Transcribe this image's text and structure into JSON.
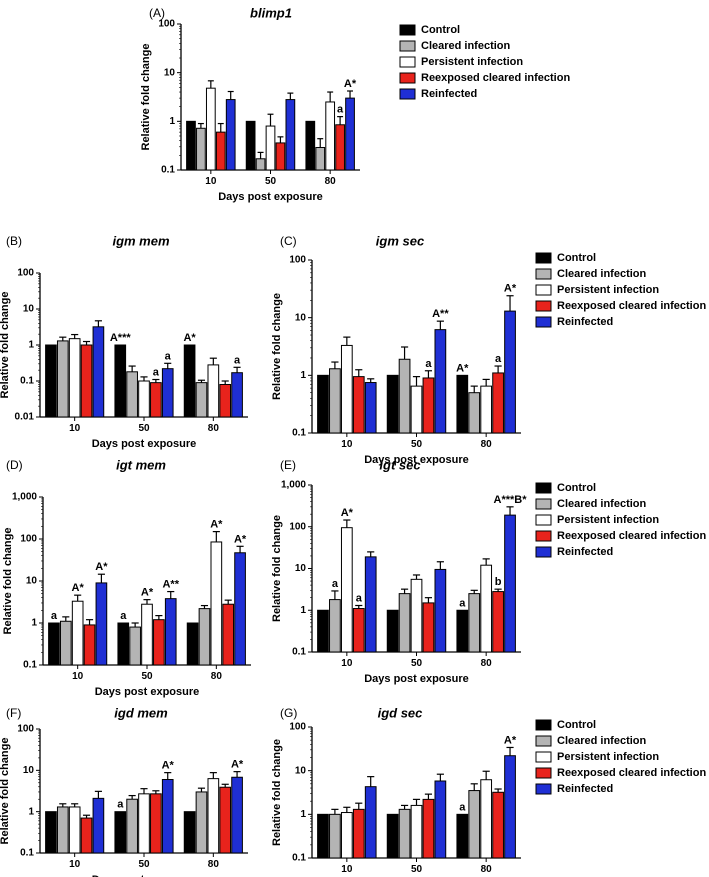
{
  "legend_labels": [
    "Control",
    "Cleared infection",
    "Persistent infection",
    "Reexposed cleared infection",
    "Reinfected"
  ],
  "series_colors": [
    "#000000",
    "#b4b4b4",
    "#ffffff",
    "#e8231c",
    "#1f2fd4"
  ],
  "chart_data": [
    {
      "panel": "(A)",
      "title": "blimp1",
      "type": "bar",
      "xlabel": "Days post exposure",
      "ylabel": "Relative fold change",
      "yscale": "log",
      "ylim": [
        0.1,
        100
      ],
      "yticks": [
        "0.1",
        "1",
        "10",
        "100"
      ],
      "categories": [
        "10",
        "50",
        "80"
      ],
      "series": [
        {
          "name": "Control",
          "values": [
            1,
            1,
            1
          ],
          "errors": [
            0,
            0,
            0
          ]
        },
        {
          "name": "Cleared infection",
          "values": [
            0.72,
            0.17,
            0.29
          ],
          "errors": [
            0.18,
            0.06,
            0.15
          ]
        },
        {
          "name": "Persistent infection",
          "values": [
            4.8,
            0.8,
            2.5
          ],
          "errors": [
            2.0,
            0.6,
            1.5
          ]
        },
        {
          "name": "Reexposed cleared infection",
          "values": [
            0.6,
            0.36,
            0.85
          ],
          "errors": [
            0.3,
            0.12,
            0.4
          ]
        },
        {
          "name": "Reinfected",
          "values": [
            2.8,
            2.8,
            3.0
          ],
          "errors": [
            1.3,
            1.0,
            1.2
          ]
        }
      ],
      "annotations": [
        {
          "category": 2,
          "series": 3,
          "text": "a"
        },
        {
          "category": 2,
          "series": 4,
          "text": "A*"
        }
      ]
    },
    {
      "panel": "(B)",
      "title": "igm mem",
      "type": "bar",
      "xlabel": "Days post exposure",
      "ylabel": "Relative fold change",
      "yscale": "log",
      "ylim": [
        0.01,
        100
      ],
      "yticks": [
        "0.01",
        "0.1",
        "1",
        "10",
        "100"
      ],
      "categories": [
        "10",
        "50",
        "80"
      ],
      "series": [
        {
          "name": "Control",
          "values": [
            1,
            1,
            1
          ],
          "errors": [
            0,
            0,
            0
          ]
        },
        {
          "name": "Cleared infection",
          "values": [
            1.3,
            0.18,
            0.09
          ],
          "errors": [
            0.35,
            0.08,
            0.015
          ]
        },
        {
          "name": "Persistent infection",
          "values": [
            1.5,
            0.1,
            0.28
          ],
          "errors": [
            0.45,
            0.03,
            0.15
          ]
        },
        {
          "name": "Reexposed cleared infection",
          "values": [
            1.0,
            0.09,
            0.08
          ],
          "errors": [
            0.25,
            0.02,
            0.02
          ]
        },
        {
          "name": "Reinfected",
          "values": [
            3.2,
            0.22,
            0.17
          ],
          "errors": [
            1.5,
            0.09,
            0.07
          ]
        }
      ],
      "annotations": [
        {
          "category": 1,
          "series": 0,
          "text": "A***"
        },
        {
          "category": 1,
          "series": 3,
          "text": "a"
        },
        {
          "category": 1,
          "series": 4,
          "text": "a"
        },
        {
          "category": 2,
          "series": 0,
          "text": "A*"
        },
        {
          "category": 2,
          "series": 4,
          "text": "a"
        }
      ]
    },
    {
      "panel": "(C)",
      "title": "igm sec",
      "type": "bar",
      "xlabel": "Days post exposure",
      "ylabel": "Relative fold change",
      "yscale": "log",
      "ylim": [
        0.1,
        100
      ],
      "yticks": [
        "0.1",
        "1",
        "10",
        "100"
      ],
      "categories": [
        "10",
        "50",
        "80"
      ],
      "series": [
        {
          "name": "Control",
          "values": [
            1,
            1,
            1
          ],
          "errors": [
            0,
            0,
            0
          ]
        },
        {
          "name": "Cleared infection",
          "values": [
            1.3,
            1.9,
            0.5
          ],
          "errors": [
            0.4,
            1.2,
            0.15
          ]
        },
        {
          "name": "Persistent infection",
          "values": [
            3.3,
            0.65,
            0.65
          ],
          "errors": [
            1.3,
            0.3,
            0.2
          ]
        },
        {
          "name": "Reexposed cleared infection",
          "values": [
            0.95,
            0.9,
            1.1
          ],
          "errors": [
            0.3,
            0.3,
            0.35
          ]
        },
        {
          "name": "Reinfected",
          "values": [
            0.75,
            6.2,
            13
          ],
          "errors": [
            0.12,
            2.5,
            11
          ]
        }
      ],
      "annotations": [
        {
          "category": 1,
          "series": 3,
          "text": "a"
        },
        {
          "category": 1,
          "series": 4,
          "text": "A**"
        },
        {
          "category": 2,
          "series": 0,
          "text": "A*"
        },
        {
          "category": 2,
          "series": 3,
          "text": "a"
        },
        {
          "category": 2,
          "series": 4,
          "text": "A*"
        }
      ]
    },
    {
      "panel": "(D)",
      "title": "igt mem",
      "type": "bar",
      "xlabel": "Days post exposure",
      "ylabel": "Relative fold change",
      "yscale": "log",
      "ylim": [
        0.1,
        1000
      ],
      "yticks": [
        "0.1",
        "1",
        "10",
        "100",
        "1,000"
      ],
      "categories": [
        "10",
        "50",
        "80"
      ],
      "series": [
        {
          "name": "Control",
          "values": [
            1,
            1,
            1
          ],
          "errors": [
            0,
            0,
            0
          ]
        },
        {
          "name": "Cleared infection",
          "values": [
            1.1,
            0.8,
            2.2
          ],
          "errors": [
            0.3,
            0.2,
            0.4
          ]
        },
        {
          "name": "Persistent infection",
          "values": [
            3.3,
            2.8,
            85
          ],
          "errors": [
            1.3,
            0.8,
            65
          ]
        },
        {
          "name": "Reexposed cleared infection",
          "values": [
            0.9,
            1.2,
            2.8
          ],
          "errors": [
            0.3,
            0.3,
            0.7
          ]
        },
        {
          "name": "Reinfected",
          "values": [
            9,
            3.8,
            47
          ],
          "errors": [
            5.5,
            1.8,
            20
          ]
        }
      ],
      "annotations": [
        {
          "category": 0,
          "series": 0,
          "text": "a"
        },
        {
          "category": 0,
          "series": 2,
          "text": "A*"
        },
        {
          "category": 0,
          "series": 4,
          "text": "A*"
        },
        {
          "category": 1,
          "series": 0,
          "text": "a"
        },
        {
          "category": 1,
          "series": 2,
          "text": "A*"
        },
        {
          "category": 1,
          "series": 4,
          "text": "A**"
        },
        {
          "category": 2,
          "series": 2,
          "text": "A*"
        },
        {
          "category": 2,
          "series": 4,
          "text": "A*"
        }
      ]
    },
    {
      "panel": "(E)",
      "title": "igt sec",
      "type": "bar",
      "xlabel": "Days post exposure",
      "ylabel": "Relative fold change",
      "yscale": "log",
      "ylim": [
        0.1,
        1000
      ],
      "yticks": [
        "0.1",
        "1",
        "10",
        "100",
        "1,000"
      ],
      "categories": [
        "10",
        "50",
        "80"
      ],
      "series": [
        {
          "name": "Control",
          "values": [
            1,
            1,
            1
          ],
          "errors": [
            0,
            0,
            0
          ]
        },
        {
          "name": "Cleared infection",
          "values": [
            1.8,
            2.5,
            2.5
          ],
          "errors": [
            1.1,
            0.7,
            0.5
          ]
        },
        {
          "name": "Persistent infection",
          "values": [
            95,
            5.5,
            12
          ],
          "errors": [
            50,
            1.5,
            5
          ]
        },
        {
          "name": "Reexposed cleared infection",
          "values": [
            1.1,
            1.5,
            2.8
          ],
          "errors": [
            0.2,
            0.5,
            0.4
          ]
        },
        {
          "name": "Reinfected",
          "values": [
            19,
            9.5,
            190
          ],
          "errors": [
            6,
            5,
            110
          ]
        }
      ],
      "annotations": [
        {
          "category": 0,
          "series": 1,
          "text": "a"
        },
        {
          "category": 0,
          "series": 2,
          "text": "A*"
        },
        {
          "category": 0,
          "series": 3,
          "text": "a"
        },
        {
          "category": 2,
          "series": 0,
          "text": "a"
        },
        {
          "category": 2,
          "series": 3,
          "text": "b"
        },
        {
          "category": 2,
          "series": 4,
          "text": "A***B*"
        }
      ]
    },
    {
      "panel": "(F)",
      "title": "igd mem",
      "type": "bar",
      "xlabel": "Days post exposure",
      "ylabel": "Relative fold change",
      "yscale": "log",
      "ylim": [
        0.1,
        100
      ],
      "yticks": [
        "0.1",
        "1",
        "10",
        "100"
      ],
      "categories": [
        "10",
        "50",
        "80"
      ],
      "series": [
        {
          "name": "Control",
          "values": [
            1,
            1,
            1
          ],
          "errors": [
            0,
            0,
            0
          ]
        },
        {
          "name": "Cleared infection",
          "values": [
            1.3,
            2.0,
            3.0
          ],
          "errors": [
            0.25,
            0.45,
            0.7
          ]
        },
        {
          "name": "Persistent infection",
          "values": [
            1.3,
            2.7,
            6.3
          ],
          "errors": [
            0.25,
            0.9,
            2.5
          ]
        },
        {
          "name": "Reexposed cleared infection",
          "values": [
            0.7,
            2.7,
            3.9
          ],
          "errors": [
            0.12,
            0.5,
            0.7
          ]
        },
        {
          "name": "Reinfected",
          "values": [
            2.1,
            6.0,
            6.8
          ],
          "errors": [
            1.0,
            2.8,
            2.5
          ]
        }
      ],
      "annotations": [
        {
          "category": 1,
          "series": 0,
          "text": "a"
        },
        {
          "category": 1,
          "series": 4,
          "text": "A*"
        },
        {
          "category": 2,
          "series": 4,
          "text": "A*"
        }
      ]
    },
    {
      "panel": "(G)",
      "title": "igd sec",
      "type": "bar",
      "xlabel": "Days post exposure",
      "ylabel": "Relative fold change",
      "yscale": "log",
      "ylim": [
        0.1,
        100
      ],
      "yticks": [
        "0.1",
        "1",
        "10",
        "100"
      ],
      "categories": [
        "10",
        "50",
        "80"
      ],
      "series": [
        {
          "name": "Control",
          "values": [
            1,
            1,
            1
          ],
          "errors": [
            0,
            0,
            0
          ]
        },
        {
          "name": "Cleared infection",
          "values": [
            1.0,
            1.3,
            3.5
          ],
          "errors": [
            0.3,
            0.3,
            1.5
          ]
        },
        {
          "name": "Persistent infection",
          "values": [
            1.1,
            1.6,
            6.2
          ],
          "errors": [
            0.35,
            0.6,
            3.5
          ]
        },
        {
          "name": "Reexposed cleared infection",
          "values": [
            1.3,
            2.2,
            3.2
          ],
          "errors": [
            0.5,
            0.7,
            0.6
          ]
        },
        {
          "name": "Reinfected",
          "values": [
            4.3,
            5.8,
            22
          ],
          "errors": [
            3.0,
            2.5,
            12
          ]
        }
      ],
      "annotations": [
        {
          "category": 2,
          "series": 0,
          "text": "a"
        },
        {
          "category": 2,
          "series": 4,
          "text": "A*"
        }
      ]
    }
  ]
}
